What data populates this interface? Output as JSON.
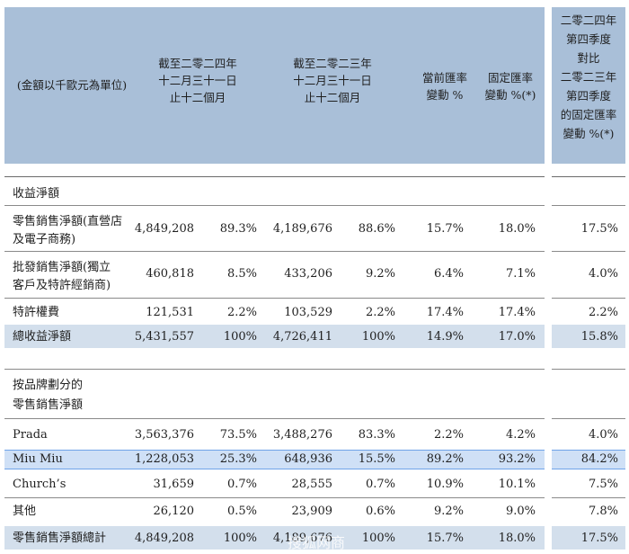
{
  "header": {
    "unit": "(金額以千歐元為單位)",
    "col_2024": [
      "截至二零二四年",
      "十二月三十一日",
      "止十二個月"
    ],
    "col_2023": [
      "截至二零二三年",
      "十二月三十一日",
      "止十二個月"
    ],
    "col_fx": [
      "當前匯率",
      "變動 %"
    ],
    "col_const": [
      "固定匯率",
      "變動 %(*)"
    ],
    "col_q4": [
      "二零二四年",
      "第四季度",
      "對比",
      "二零二三年",
      "第四季度",
      "的固定匯率",
      "變動 %(*)"
    ]
  },
  "section1": {
    "title": "收益淨額",
    "rows": [
      {
        "label": [
          "零售銷售淨額(直營店",
          "及電子商務)"
        ],
        "v2024": "4,849,208",
        "p2024": "89.3%",
        "v2023": "4,189,676",
        "p2023": "88.6%",
        "fx": "15.7%",
        "const": "18.0%",
        "q4": "17.5%"
      },
      {
        "label": [
          "批發銷售淨額(獨立",
          "客戶及特許經銷商)"
        ],
        "v2024": "460,818",
        "p2024": "8.5%",
        "v2023": "433,206",
        "p2023": "9.2%",
        "fx": "6.4%",
        "const": "7.1%",
        "q4": "4.0%"
      },
      {
        "label": [
          "特許權費"
        ],
        "v2024": "121,531",
        "p2024": "2.2%",
        "v2023": "103,529",
        "p2023": "2.2%",
        "fx": "17.4%",
        "const": "17.4%",
        "q4": "2.2%"
      }
    ],
    "total": {
      "label": "總收益淨額",
      "v2024": "5,431,557",
      "p2024": "100%",
      "v2023": "4,726,411",
      "p2023": "100%",
      "fx": "14.9%",
      "const": "17.0%",
      "q4": "15.8%"
    }
  },
  "section2": {
    "title": [
      "按品牌劃分的",
      "零售銷售淨額"
    ],
    "rows": [
      {
        "label": "Prada",
        "v2024": "3,563,376",
        "p2024": "73.5%",
        "v2023": "3,488,276",
        "p2023": "83.3%",
        "fx": "2.2%",
        "const": "4.2%",
        "q4": "4.0%"
      },
      {
        "label": "Miu Miu",
        "v2024": "1,228,053",
        "p2024": "25.3%",
        "v2023": "648,936",
        "p2023": "15.5%",
        "fx": "89.2%",
        "const": "93.2%",
        "q4": "84.2%"
      },
      {
        "label": "Church’s",
        "v2024": "31,659",
        "p2024": "0.7%",
        "v2023": "28,555",
        "p2023": "0.7%",
        "fx": "10.9%",
        "const": "10.1%",
        "q4": "7.5%"
      },
      {
        "label": "其他",
        "v2024": "26,120",
        "p2024": "0.5%",
        "v2023": "23,909",
        "p2023": "0.6%",
        "fx": "9.2%",
        "const": "9.0%",
        "q4": "7.8%"
      }
    ],
    "total": {
      "label": "零售銷售淨額總計",
      "v2024": "4,849,208",
      "p2024": "100%",
      "v2023": "4,189,676",
      "p2023": "100%",
      "fx": "15.7%",
      "const": "18.0%",
      "q4": "17.5%"
    }
  },
  "watermark": "搜狐网商"
}
